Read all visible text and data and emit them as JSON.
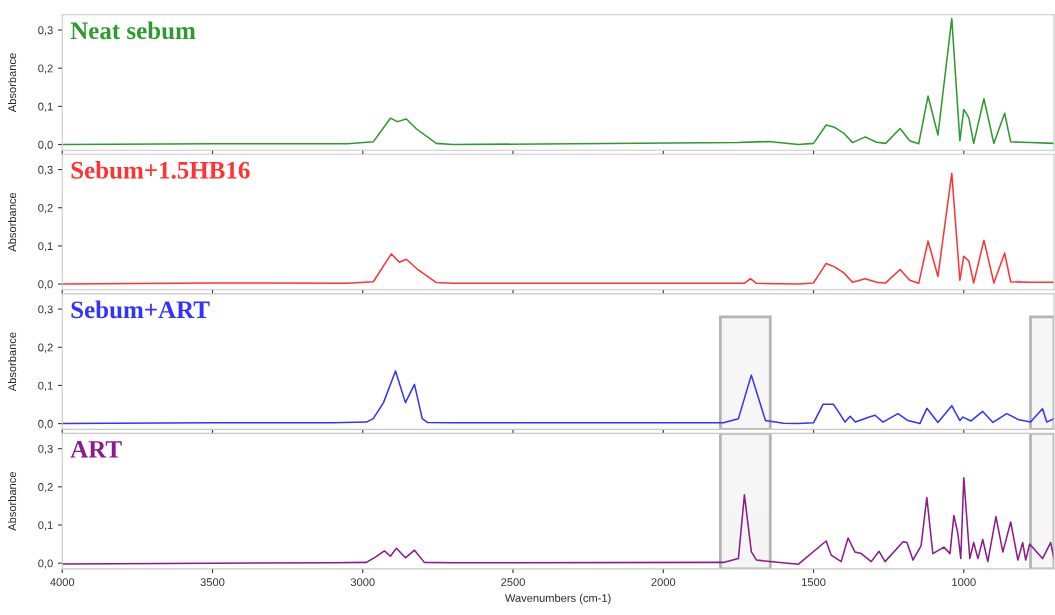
{
  "chart_data": [
    {
      "type": "line",
      "title": "Neat sebum",
      "ylabel": "Absorbance",
      "tick_labels": "y",
      "xlim": [
        4000,
        700
      ],
      "xticks": [
        4000,
        3500,
        3000,
        2500,
        2000,
        1500,
        1000
      ],
      "ylim": [
        -0.015,
        0.34
      ],
      "yticks": [
        {
          "value": 0,
          "label": "0,0"
        },
        {
          "value": 0.1,
          "label": "0,1"
        },
        {
          "value": 0.2,
          "label": "0,2"
        },
        {
          "value": 0.3,
          "label": "0,3"
        }
      ],
      "x": [
        4000,
        3500,
        3050,
        2965,
        2908,
        2885,
        2855,
        2820,
        2755,
        2700,
        1750,
        1650,
        1550,
        1500,
        1458,
        1430,
        1400,
        1370,
        1328,
        1290,
        1260,
        1212,
        1180,
        1150,
        1119,
        1086,
        1040,
        1013,
        1000,
        983,
        967,
        933,
        900,
        864,
        844,
        780,
        700
      ],
      "series": [
        {
          "color": "#2e9a2e",
          "values": [
            0,
            0.002,
            0.002,
            0.007,
            0.069,
            0.06,
            0.067,
            0.04,
            0.003,
            0,
            0.005,
            0.008,
            0,
            0.003,
            0.051,
            0.045,
            0.03,
            0.005,
            0.02,
            0.006,
            0.003,
            0.042,
            0.01,
            0.002,
            0.127,
            0.025,
            0.33,
            0.01,
            0.092,
            0.07,
            0.003,
            0.12,
            0.003,
            0.082,
            0.007,
            0.005,
            0.003
          ]
        }
      ]
    },
    {
      "type": "line",
      "title": "Sebum+1.5HB16",
      "ylabel": "Absorbance",
      "tick_labels": "y",
      "xlim": [
        4000,
        700
      ],
      "xticks": [
        4000,
        3500,
        3000,
        2500,
        2000,
        1500,
        1000
      ],
      "ylim": [
        -0.015,
        0.34
      ],
      "yticks": [
        {
          "value": 0,
          "label": "0,0"
        },
        {
          "value": 0.1,
          "label": "0,1"
        },
        {
          "value": 0.2,
          "label": "0,2"
        },
        {
          "value": 0.3,
          "label": "0,3"
        }
      ],
      "x": [
        4000,
        3500,
        3050,
        2965,
        2905,
        2878,
        2855,
        2820,
        2755,
        2700,
        1730,
        1710,
        1690,
        1550,
        1500,
        1458,
        1430,
        1400,
        1370,
        1328,
        1290,
        1260,
        1212,
        1180,
        1150,
        1119,
        1086,
        1040,
        1013,
        1000,
        983,
        967,
        933,
        900,
        864,
        844,
        780,
        700
      ],
      "series": [
        {
          "color": "#ff3333",
          "values": [
            0,
            0.003,
            0.002,
            0.006,
            0.079,
            0.057,
            0.065,
            0.04,
            0.004,
            0.002,
            0.002,
            0.014,
            0.002,
            0,
            0.003,
            0.054,
            0.045,
            0.03,
            0.005,
            0.014,
            0.005,
            0.003,
            0.038,
            0.01,
            0.002,
            0.113,
            0.02,
            0.29,
            0.01,
            0.073,
            0.06,
            0.003,
            0.115,
            0.003,
            0.081,
            0.006,
            0.005,
            0.005
          ]
        }
      ]
    },
    {
      "type": "line",
      "title": "Sebum+ART",
      "ylabel": "Absorbance",
      "tick_labels": "y",
      "xlim": [
        4000,
        700
      ],
      "xticks": [
        4000,
        3500,
        3000,
        2500,
        2000,
        1500,
        1000
      ],
      "ylim": [
        -0.015,
        0.34
      ],
      "yticks": [
        {
          "value": 0,
          "label": "0,0"
        },
        {
          "value": 0.1,
          "label": "0,1"
        },
        {
          "value": 0.2,
          "label": "0,2"
        },
        {
          "value": 0.3,
          "label": "0,3"
        }
      ],
      "bands": [
        {
          "axis": "x",
          "from": 1810,
          "to": 1644,
          "label": null,
          "color": "#b4b4b4"
        },
        {
          "axis": "x",
          "from": 778,
          "to": 700,
          "label": null,
          "color": "#b4b4b4"
        }
      ],
      "x": [
        4000,
        3500,
        3100,
        2988,
        2965,
        2931,
        2891,
        2858,
        2828,
        2802,
        2785,
        2700,
        1800,
        1750,
        1707,
        1660,
        1600,
        1550,
        1500,
        1468,
        1434,
        1418,
        1395,
        1378,
        1361,
        1312,
        1295,
        1269,
        1219,
        1186,
        1146,
        1123,
        1086,
        1040,
        1013,
        1003,
        976,
        937,
        903,
        857,
        820,
        778,
        738,
        724,
        700
      ],
      "series": [
        {
          "color": "#3333ff",
          "values": [
            0,
            0.002,
            0.002,
            0.004,
            0.013,
            0.055,
            0.138,
            0.055,
            0.103,
            0.013,
            0.003,
            0.002,
            0.002,
            0.013,
            0.127,
            0.008,
            0.001,
            0,
            0.002,
            0.051,
            0.051,
            0.032,
            0.004,
            0.019,
            0.004,
            0.018,
            0.022,
            0.004,
            0.026,
            0.008,
            0,
            0.04,
            0.003,
            0.047,
            0.008,
            0.017,
            0.007,
            0.032,
            0.003,
            0.026,
            0.011,
            0.004,
            0.039,
            0.004,
            0.013
          ]
        }
      ]
    },
    {
      "type": "line",
      "title": "ART",
      "ylabel": "Absorbance",
      "xlabel": "Wavenumbers (cm-1)",
      "xlim": [
        4000,
        700
      ],
      "xticks": [
        4000,
        3500,
        3000,
        2500,
        2000,
        1500,
        1000
      ],
      "ylim": [
        -0.015,
        0.34
      ],
      "yticks": [
        {
          "value": 0,
          "label": "0,0"
        },
        {
          "value": 0.1,
          "label": "0,1"
        },
        {
          "value": 0.2,
          "label": "0,2"
        },
        {
          "value": 0.3,
          "label": "0,3"
        }
      ],
      "bands": [
        {
          "axis": "x",
          "from": 1810,
          "to": 1644,
          "label": null,
          "color": "#b4b4b4"
        },
        {
          "axis": "x",
          "from": 778,
          "to": 700,
          "label": null,
          "color": "#b4b4b4"
        }
      ],
      "x": [
        4000,
        3500,
        3100,
        2988,
        2958,
        2928,
        2908,
        2888,
        2858,
        2828,
        2795,
        2700,
        1800,
        1750,
        1730,
        1707,
        1690,
        1551,
        1458,
        1441,
        1408,
        1385,
        1362,
        1341,
        1308,
        1282,
        1262,
        1202,
        1189,
        1169,
        1142,
        1123,
        1103,
        1086,
        1066,
        1046,
        1033,
        1020,
        1010,
        1000,
        980,
        967,
        953,
        937,
        920,
        893,
        870,
        844,
        820,
        804,
        794,
        781,
        738,
        711,
        700
      ],
      "series": [
        {
          "color": "#8b1a8b",
          "values": [
            -0.002,
            0,
            0.001,
            0.002,
            0.016,
            0.032,
            0.018,
            0.039,
            0.014,
            0.034,
            0.002,
            0.001,
            0.002,
            0.012,
            0.179,
            0.03,
            0.008,
            -0.003,
            0.058,
            0.021,
            0.004,
            0.066,
            0.029,
            0.025,
            0.004,
            0.031,
            0.004,
            0.056,
            0.054,
            0.008,
            0.046,
            0.172,
            0.025,
            0.033,
            0.042,
            0.025,
            0.125,
            0.079,
            0.012,
            0.224,
            0.012,
            0.054,
            0.012,
            0.062,
            0.004,
            0.122,
            0.029,
            0.108,
            0.008,
            0.054,
            0.008,
            0.05,
            0.012,
            0.054,
            0.012
          ]
        }
      ]
    }
  ]
}
